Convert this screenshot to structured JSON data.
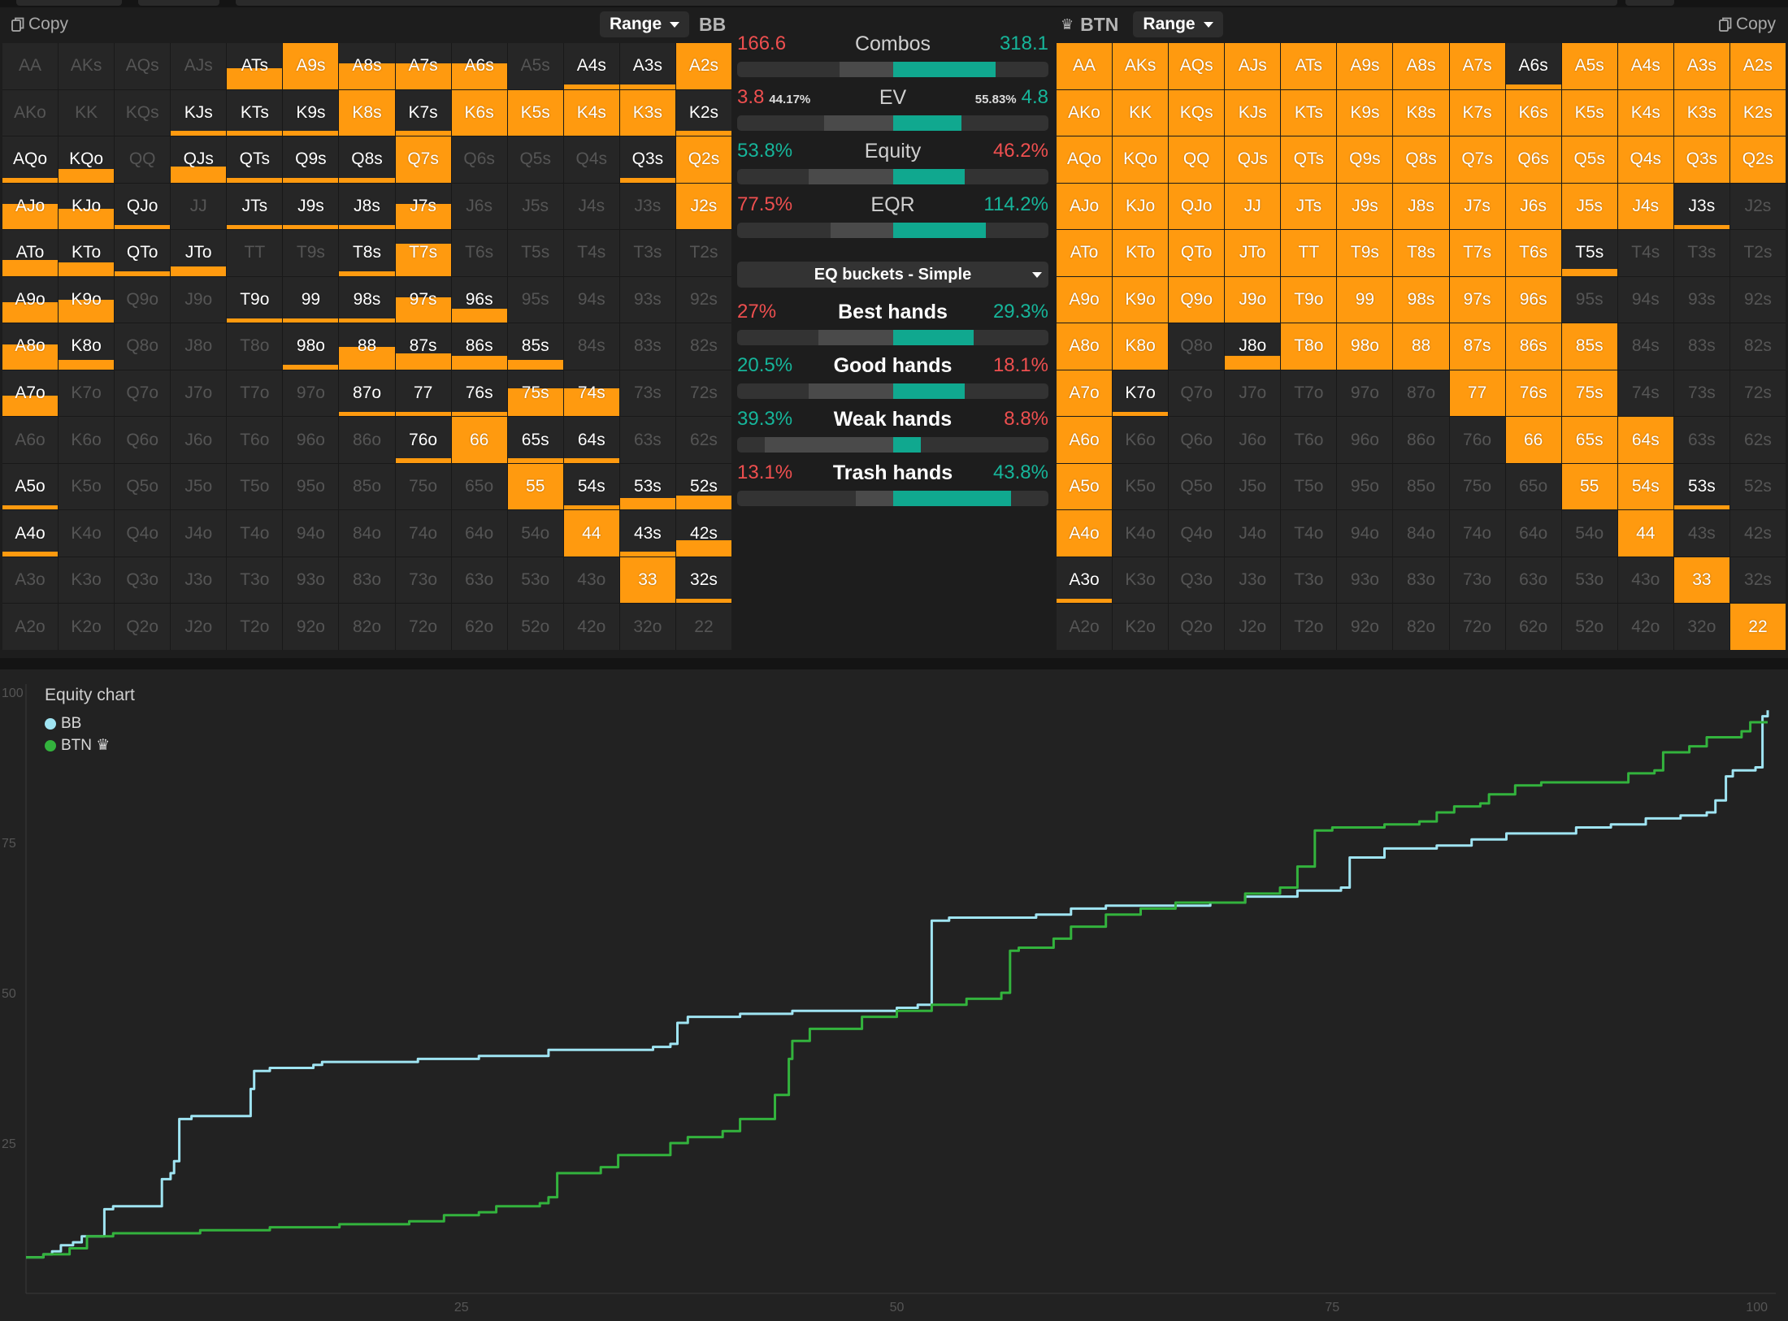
{
  "left_header": {
    "copy": "Copy",
    "range": "Range",
    "pos": "BB"
  },
  "right_header": {
    "crown": "♛",
    "pos": "BTN",
    "range": "Range",
    "copy": "Copy"
  },
  "hands": [
    [
      "AA",
      "AKs",
      "AQs",
      "AJs",
      "ATs",
      "A9s",
      "A8s",
      "A7s",
      "A6s",
      "A5s",
      "A4s",
      "A3s",
      "A2s"
    ],
    [
      "AKo",
      "KK",
      "KQs",
      "KJs",
      "KTs",
      "K9s",
      "K8s",
      "K7s",
      "K6s",
      "K5s",
      "K4s",
      "K3s",
      "K2s"
    ],
    [
      "AQo",
      "KQo",
      "QQ",
      "QJs",
      "QTs",
      "Q9s",
      "Q8s",
      "Q7s",
      "Q6s",
      "Q5s",
      "Q4s",
      "Q3s",
      "Q2s"
    ],
    [
      "AJo",
      "KJo",
      "QJo",
      "JJ",
      "JTs",
      "J9s",
      "J8s",
      "J7s",
      "J6s",
      "J5s",
      "J4s",
      "J3s",
      "J2s"
    ],
    [
      "ATo",
      "KTo",
      "QTo",
      "JTo",
      "TT",
      "T9s",
      "T8s",
      "T7s",
      "T6s",
      "T5s",
      "T4s",
      "T3s",
      "T2s"
    ],
    [
      "A9o",
      "K9o",
      "Q9o",
      "J9o",
      "T9o",
      "99",
      "98s",
      "97s",
      "96s",
      "95s",
      "94s",
      "93s",
      "92s"
    ],
    [
      "A8o",
      "K8o",
      "Q8o",
      "J8o",
      "T8o",
      "98o",
      "88",
      "87s",
      "86s",
      "85s",
      "84s",
      "83s",
      "82s"
    ],
    [
      "A7o",
      "K7o",
      "Q7o",
      "J7o",
      "T7o",
      "97o",
      "87o",
      "77",
      "76s",
      "75s",
      "74s",
      "73s",
      "72s"
    ],
    [
      "A6o",
      "K6o",
      "Q6o",
      "J6o",
      "T6o",
      "96o",
      "86o",
      "76o",
      "66",
      "65s",
      "64s",
      "63s",
      "62s"
    ],
    [
      "A5o",
      "K5o",
      "Q5o",
      "J5o",
      "T5o",
      "95o",
      "85o",
      "75o",
      "65o",
      "55",
      "54s",
      "53s",
      "52s"
    ],
    [
      "A4o",
      "K4o",
      "Q4o",
      "J4o",
      "T4o",
      "94o",
      "84o",
      "74o",
      "64o",
      "54o",
      "44",
      "43s",
      "42s"
    ],
    [
      "A3o",
      "K3o",
      "Q3o",
      "J3o",
      "T3o",
      "93o",
      "83o",
      "73o",
      "63o",
      "53o",
      "43o",
      "33",
      "32s"
    ],
    [
      "A2o",
      "K2o",
      "Q2o",
      "J2o",
      "T2o",
      "92o",
      "82o",
      "72o",
      "62o",
      "52o",
      "42o",
      "32o",
      "22"
    ]
  ],
  "bb_range": {
    "AA": 0,
    "AKs": 0,
    "AQs": 0,
    "AJs": 0,
    "ATs": 0.45,
    "A9s": 1,
    "A8s": 0.55,
    "A7s": 0.55,
    "A6s": 0.55,
    "A5s": 0,
    "A4s": 0.1,
    "A3s": 0.1,
    "A2s": 1,
    "AKo": 0,
    "KK": 0,
    "KQs": 0,
    "KJs": 0.1,
    "KTs": 0.1,
    "K9s": 0.1,
    "K8s": 1,
    "K7s": 0.1,
    "K6s": 1,
    "K5s": 1,
    "K4s": 1,
    "K3s": 1,
    "K2s": 0.1,
    "AQo": 0.1,
    "KQo": 0.3,
    "QQ": 0,
    "QJs": 0.35,
    "QTs": 0.1,
    "Q9s": 0.1,
    "Q8s": 0.1,
    "Q7s": 1,
    "Q6s": 0,
    "Q5s": 0,
    "Q4s": 0,
    "Q3s": 0.1,
    "Q2s": 1,
    "AJo": 0.55,
    "KJo": 0.45,
    "QJo": 0.1,
    "JJ": 0,
    "JTs": 0.1,
    "J9s": 0.1,
    "J8s": 0.1,
    "J7s": 0.55,
    "J6s": 0,
    "J5s": 0,
    "J4s": 0,
    "J3s": 0,
    "J2s": 1,
    "ATo": 0.35,
    "KTo": 0.3,
    "QTo": 0.1,
    "JTo": 0.2,
    "TT": 0,
    "T9s": 0,
    "T8s": 0.1,
    "T7s": 0.7,
    "T6s": 0,
    "T5s": 0,
    "T4s": 0,
    "T3s": 0,
    "T2s": 0,
    "A9o": 0.45,
    "K9o": 0.5,
    "Q9o": 0,
    "J9o": 0,
    "T9o": 0.1,
    "99": 0.1,
    "98s": 0.1,
    "97s": 0.55,
    "96s": 0.3,
    "95s": 0,
    "94s": 0,
    "93s": 0,
    "92s": 0,
    "A8o": 0.55,
    "K8o": 0.2,
    "Q8o": 0,
    "J8o": 0,
    "T8o": 0,
    "98o": 0.1,
    "88": 0.5,
    "87s": 0.35,
    "86s": 0.3,
    "85s": 0.2,
    "84s": 0,
    "83s": 0,
    "82s": 0,
    "A7o": 0.45,
    "K7o": 0,
    "Q7o": 0,
    "J7o": 0,
    "T7o": 0,
    "97o": 0,
    "87o": 0.1,
    "77": 0.1,
    "76s": 0.1,
    "75s": 0.6,
    "74s": 0.6,
    "73s": 0,
    "72s": 0,
    "A6o": 0,
    "K6o": 0,
    "Q6o": 0,
    "J6o": 0,
    "T6o": 0,
    "96o": 0,
    "86o": 0,
    "76o": 0.1,
    "66": 1,
    "65s": 0.1,
    "64s": 0.1,
    "63s": 0,
    "62s": 0,
    "A5o": 0.1,
    "K5o": 0,
    "Q5o": 0,
    "J5o": 0,
    "T5o": 0,
    "95o": 0,
    "85o": 0,
    "75o": 0,
    "65o": 0,
    "55": 1,
    "54s": 0.1,
    "53s": 0.25,
    "52s": 0.3,
    "A4o": 0.1,
    "K4o": 0,
    "Q4o": 0,
    "J4o": 0,
    "T4o": 0,
    "94o": 0,
    "84o": 0,
    "74o": 0,
    "64o": 0,
    "54o": 0,
    "44": 1,
    "43s": 0.1,
    "42s": 0.35,
    "A3o": 0,
    "K3o": 0,
    "Q3o": 0,
    "J3o": 0,
    "T3o": 0,
    "93o": 0,
    "83o": 0,
    "73o": 0,
    "63o": 0,
    "53o": 0,
    "43o": 0,
    "33": 1,
    "32s": 0.1,
    "A2o": 0,
    "K2o": 0,
    "Q2o": 0,
    "J2o": 0,
    "T2o": 0,
    "92o": 0,
    "82o": 0,
    "72o": 0,
    "62o": 0,
    "52o": 0,
    "42o": 0,
    "32o": 0,
    "22": 0
  },
  "btn_range": {
    "AA": 1,
    "AKs": 1,
    "AQs": 1,
    "AJs": 1,
    "ATs": 1,
    "A9s": 1,
    "A8s": 1,
    "A7s": 1,
    "A6s": 0.1,
    "A5s": 1,
    "A4s": 1,
    "A3s": 1,
    "A2s": 1,
    "AKo": 1,
    "KK": 1,
    "KQs": 1,
    "KJs": 1,
    "KTs": 1,
    "K9s": 1,
    "K8s": 1,
    "K7s": 1,
    "K6s": 1,
    "K5s": 1,
    "K4s": 1,
    "K3s": 1,
    "K2s": 1,
    "AQo": 1,
    "KQo": 1,
    "QQ": 1,
    "QJs": 1,
    "QTs": 1,
    "Q9s": 1,
    "Q8s": 1,
    "Q7s": 1,
    "Q6s": 1,
    "Q5s": 1,
    "Q4s": 1,
    "Q3s": 1,
    "Q2s": 1,
    "AJo": 1,
    "KJo": 1,
    "QJo": 1,
    "JJ": 1,
    "JTs": 1,
    "J9s": 1,
    "J8s": 1,
    "J7s": 1,
    "J6s": 1,
    "J5s": 1,
    "J4s": 1,
    "J3s": 0.1,
    "J2s": 0,
    "ATo": 1,
    "KTo": 1,
    "QTo": 1,
    "JTo": 1,
    "TT": 1,
    "T9s": 1,
    "T8s": 1,
    "T7s": 1,
    "T6s": 1,
    "T5s": 0.15,
    "T4s": 0,
    "T3s": 0,
    "T2s": 0,
    "A9o": 1,
    "K9o": 1,
    "Q9o": 1,
    "J9o": 1,
    "T9o": 1,
    "99": 1,
    "98s": 1,
    "97s": 1,
    "96s": 1,
    "95s": 0,
    "94s": 0,
    "93s": 0,
    "92s": 0,
    "A8o": 1,
    "K8o": 1,
    "Q8o": 0,
    "J8o": 0.3,
    "T8o": 1,
    "98o": 1,
    "88": 1,
    "87s": 1,
    "86s": 1,
    "85s": 1,
    "84s": 0,
    "83s": 0,
    "82s": 0,
    "A7o": 1,
    "K7o": 0.1,
    "Q7o": 0,
    "J7o": 0,
    "T7o": 0,
    "97o": 0,
    "87o": 0,
    "77": 1,
    "76s": 1,
    "75s": 1,
    "74s": 0,
    "73s": 0,
    "72s": 0,
    "A6o": 1,
    "K6o": 0,
    "Q6o": 0,
    "J6o": 0,
    "T6o": 0,
    "96o": 0,
    "86o": 0,
    "76o": 0,
    "66": 1,
    "65s": 1,
    "64s": 1,
    "63s": 0,
    "62s": 0,
    "A5o": 1,
    "K5o": 0,
    "Q5o": 0,
    "J5o": 0,
    "T5o": 0,
    "95o": 0,
    "85o": 0,
    "75o": 0,
    "65o": 0,
    "55": 1,
    "54s": 1,
    "53s": 0.1,
    "52s": 0,
    "A4o": 1,
    "K4o": 0,
    "Q4o": 0,
    "J4o": 0,
    "T4o": 0,
    "94o": 0,
    "84o": 0,
    "74o": 0,
    "64o": 0,
    "54o": 0,
    "44": 1,
    "43s": 0,
    "42s": 0,
    "A3o": 0.1,
    "K3o": 0,
    "Q3o": 0,
    "J3o": 0,
    "T3o": 0,
    "93o": 0,
    "83o": 0,
    "73o": 0,
    "63o": 0,
    "53o": 0,
    "43o": 0,
    "33": 1,
    "32s": 0,
    "A2o": 0,
    "K2o": 0,
    "Q2o": 0,
    "J2o": 0,
    "T2o": 0,
    "92o": 0,
    "82o": 0,
    "72o": 0,
    "62o": 0,
    "52o": 0,
    "42o": 0,
    "32o": 0,
    "22": 1
  },
  "stats": {
    "combos": {
      "label": "Combos",
      "left": "166.6",
      "right": "318.1",
      "bar": [
        0.33,
        0.83
      ]
    },
    "ev": {
      "label": "EV",
      "left": "3.8",
      "left_pct": "44.17%",
      "right_pct": "55.83%",
      "right": "4.8",
      "bar": [
        0.28,
        0.72
      ]
    },
    "equity": {
      "label": "Equity",
      "left": "53.8%",
      "right": "46.2%",
      "bar": [
        0.23,
        0.73
      ]
    },
    "eqr": {
      "label": "EQR",
      "left": "77.5%",
      "right": "114.2%",
      "bar": [
        0.3,
        0.8
      ]
    },
    "dropdown": "EQ buckets - Simple",
    "best": {
      "label": "Best hands",
      "left": "27%",
      "right": "29.3%",
      "bar": [
        0.26,
        0.76
      ]
    },
    "good": {
      "label": "Good hands",
      "left": "20.5%",
      "right": "18.1%",
      "bar": [
        0.23,
        0.73
      ]
    },
    "weak": {
      "label": "Weak hands",
      "left": "39.3%",
      "right": "8.8%",
      "bar": [
        0.09,
        0.59
      ]
    },
    "trash": {
      "label": "Trash hands",
      "left": "13.1%",
      "right": "43.8%",
      "bar": [
        0.38,
        0.88
      ]
    }
  },
  "colors": {
    "orange": "#ff9a0f",
    "teal": "#10a88f",
    "red": "#ee4f4f",
    "bb": "#9fe4f2",
    "btn": "#33b33d"
  },
  "chart": {
    "title": "Equity chart",
    "legend": [
      {
        "name": "BB",
        "color": "#9fe4f2"
      },
      {
        "name": "BTN ♛",
        "color": "#33b33d"
      }
    ]
  },
  "chart_data": {
    "type": "line",
    "title": "Equity chart",
    "xlim": [
      0,
      100
    ],
    "ylim": [
      0,
      100
    ],
    "x_ticks": [
      25,
      50,
      75,
      100
    ],
    "y_ticks": [
      25,
      50,
      75,
      100
    ],
    "series": [
      {
        "name": "BB",
        "color": "#9fe4f2",
        "points": [
          [
            0,
            6
          ],
          [
            1,
            6.5
          ],
          [
            1.5,
            7
          ],
          [
            2,
            8
          ],
          [
            2.7,
            8.5
          ],
          [
            3.2,
            9.5
          ],
          [
            3.8,
            9.5
          ],
          [
            4.5,
            14
          ],
          [
            5,
            14.5
          ],
          [
            7.5,
            14.5
          ],
          [
            7.8,
            19
          ],
          [
            8.3,
            20
          ],
          [
            8.5,
            22
          ],
          [
            8.8,
            29
          ],
          [
            9.5,
            29.5
          ],
          [
            12.5,
            29.5
          ],
          [
            12.9,
            34
          ],
          [
            13.1,
            37
          ],
          [
            14,
            37.5
          ],
          [
            16,
            37.5
          ],
          [
            16.5,
            38
          ],
          [
            17,
            38.5
          ],
          [
            22,
            38.5
          ],
          [
            22.5,
            39
          ],
          [
            26,
            39.5
          ],
          [
            30,
            40.5
          ],
          [
            36,
            41
          ],
          [
            37,
            41.5
          ],
          [
            37.4,
            45
          ],
          [
            38,
            46
          ],
          [
            41,
            46.5
          ],
          [
            44,
            47
          ],
          [
            50,
            47.5
          ],
          [
            51.2,
            48
          ],
          [
            52,
            62
          ],
          [
            53,
            62.5
          ],
          [
            58,
            63
          ],
          [
            60,
            64
          ],
          [
            62,
            64.5
          ],
          [
            68,
            65
          ],
          [
            70,
            66
          ],
          [
            72,
            66
          ],
          [
            73,
            67
          ],
          [
            75.5,
            67.5
          ],
          [
            76,
            72.5
          ],
          [
            78,
            74
          ],
          [
            81,
            74.5
          ],
          [
            83,
            75.5
          ],
          [
            85,
            76.5
          ],
          [
            89,
            77.5
          ],
          [
            91,
            78
          ],
          [
            93,
            79
          ],
          [
            95,
            79.5
          ],
          [
            96.5,
            80
          ],
          [
            97,
            82
          ],
          [
            97.6,
            86
          ],
          [
            98,
            87
          ],
          [
            99.3,
            87.5
          ],
          [
            99.7,
            96
          ],
          [
            100,
            97
          ]
        ]
      },
      {
        "name": "BTN",
        "color": "#33b33d",
        "points": [
          [
            0,
            6
          ],
          [
            1,
            6.5
          ],
          [
            2.5,
            7.5
          ],
          [
            3.5,
            9.5
          ],
          [
            5,
            10
          ],
          [
            10,
            10.5
          ],
          [
            13,
            10.5
          ],
          [
            14,
            11
          ],
          [
            18,
            11.5
          ],
          [
            22,
            12
          ],
          [
            24,
            13
          ],
          [
            26,
            13.5
          ],
          [
            27,
            14.5
          ],
          [
            29.5,
            15
          ],
          [
            30,
            16
          ],
          [
            30.5,
            20
          ],
          [
            33,
            21
          ],
          [
            34,
            23
          ],
          [
            37,
            25
          ],
          [
            38,
            26
          ],
          [
            40,
            27
          ],
          [
            41,
            29
          ],
          [
            43,
            33
          ],
          [
            43.8,
            39
          ],
          [
            44,
            42
          ],
          [
            45,
            44
          ],
          [
            48,
            46
          ],
          [
            50,
            47
          ],
          [
            52,
            48
          ],
          [
            54,
            49
          ],
          [
            56,
            50
          ],
          [
            56.5,
            57
          ],
          [
            57,
            57.5
          ],
          [
            59,
            59
          ],
          [
            60,
            61
          ],
          [
            62,
            63
          ],
          [
            64,
            64
          ],
          [
            66,
            65
          ],
          [
            70,
            66.5
          ],
          [
            72,
            67.5
          ],
          [
            73,
            71
          ],
          [
            74,
            77
          ],
          [
            75,
            77.5
          ],
          [
            78,
            78
          ],
          [
            80,
            78.5
          ],
          [
            81,
            80
          ],
          [
            82,
            81
          ],
          [
            83.5,
            81.5
          ],
          [
            84,
            83
          ],
          [
            85.5,
            84.5
          ],
          [
            87,
            85
          ],
          [
            92,
            86.5
          ],
          [
            93.5,
            87
          ],
          [
            94,
            90
          ],
          [
            95.5,
            91
          ],
          [
            96.5,
            92.5
          ],
          [
            98.5,
            93.5
          ],
          [
            99,
            95
          ],
          [
            100,
            95
          ]
        ]
      }
    ]
  }
}
